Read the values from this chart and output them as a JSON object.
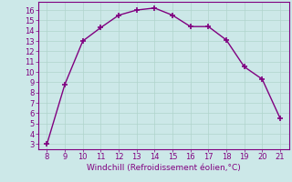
{
  "x": [
    8,
    9,
    10,
    11,
    12,
    13,
    14,
    15,
    16,
    17,
    18,
    19,
    20,
    21
  ],
  "y": [
    3,
    8.8,
    13,
    14.3,
    15.5,
    16.0,
    16.2,
    15.5,
    14.4,
    14.4,
    13.1,
    10.5,
    9.3,
    5.5
  ],
  "line_color": "#800080",
  "marker": "+",
  "marker_size": 5,
  "marker_linewidth": 1.2,
  "xlabel": "Windchill (Refroidissement éolien,°C)",
  "xlim": [
    7.5,
    21.5
  ],
  "ylim": [
    2.5,
    16.8
  ],
  "xticks": [
    8,
    9,
    10,
    11,
    12,
    13,
    14,
    15,
    16,
    17,
    18,
    19,
    20,
    21
  ],
  "yticks": [
    3,
    4,
    5,
    6,
    7,
    8,
    9,
    10,
    11,
    12,
    13,
    14,
    15,
    16
  ],
  "bg_color": "#cce8e8",
  "grid_color": "#b0d4cc",
  "tick_color": "#800080",
  "label_color": "#800080",
  "font_size": 6,
  "xlabel_fontsize": 6.5,
  "linewidth": 1.0
}
